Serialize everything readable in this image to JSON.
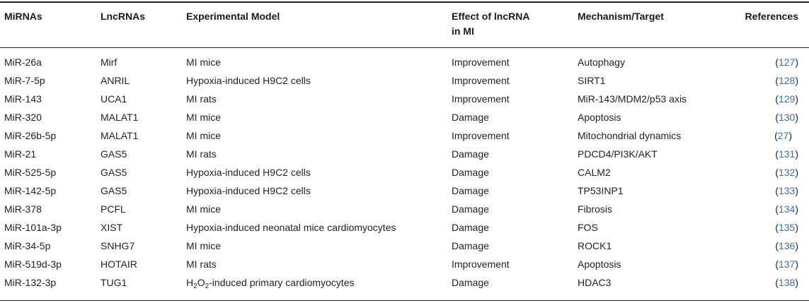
{
  "headers": {
    "mirna": "MiRNAs",
    "lncrna": "LncRNAs",
    "model": "Experimental Model",
    "effect_line1": "Effect of lncRNA",
    "effect_line2": "in MI",
    "mechanism": "Mechanism/Target",
    "references": "References"
  },
  "rows": [
    {
      "mirna": "MiR-26a",
      "lncrna": "Mirf",
      "model": "MI mice",
      "effect": "Improvement",
      "mechanism": "Autophagy",
      "ref": "127"
    },
    {
      "mirna": "MiR-7-5p",
      "lncrna": "ANRIL",
      "model": "Hypoxia-induced H9C2 cells",
      "effect": "Improvement",
      "mechanism": "SIRT1",
      "ref": "128"
    },
    {
      "mirna": "MiR-143",
      "lncrna": "UCA1",
      "model": "MI rats",
      "effect": "Improvement",
      "mechanism": "MiR-143/MDM2/p53 axis",
      "ref": "129"
    },
    {
      "mirna": "MiR-320",
      "lncrna": "MALAT1",
      "model": "MI mice",
      "effect": "Damage",
      "mechanism": "Apoptosis",
      "ref": "130"
    },
    {
      "mirna": "MiR-26b-5p",
      "lncrna": "MALAT1",
      "model": "MI mice",
      "effect": "Improvement",
      "mechanism": "Mitochondrial dynamics",
      "ref": "27"
    },
    {
      "mirna": "MiR-21",
      "lncrna": "GAS5",
      "model": "MI rats",
      "effect": "Damage",
      "mechanism": "PDCD4/PI3K/AKT",
      "ref": "131"
    },
    {
      "mirna": "MiR-525-5p",
      "lncrna": "GAS5",
      "model": "Hypoxia-induced H9C2 cells",
      "effect": "Damage",
      "mechanism": "CALM2",
      "ref": "132"
    },
    {
      "mirna": "MiR-142-5p",
      "lncrna": "GAS5",
      "model": "Hypoxia-induced H9C2 cells",
      "effect": "Damage",
      "mechanism": "TP53INP1",
      "ref": "133"
    },
    {
      "mirna": "MiR-378",
      "lncrna": "PCFL",
      "model": "MI mice",
      "effect": "Damage",
      "mechanism": "Fibrosis",
      "ref": "134"
    },
    {
      "mirna": "MiR-101a-3p",
      "lncrna": "XIST",
      "model": "Hypoxia-induced neonatal mice cardiomyocytes",
      "effect": "Damage",
      "mechanism": "FOS",
      "ref": "135"
    },
    {
      "mirna": "MiR-34-5p",
      "lncrna": "SNHG7",
      "model": "MI mice",
      "effect": "Damage",
      "mechanism": "ROCK1",
      "ref": "136"
    },
    {
      "mirna": "MiR-519d-3p",
      "lncrna": "HOTAIR",
      "model": "MI rats",
      "effect": "Improvement",
      "mechanism": "Apoptosis",
      "ref": "137"
    },
    {
      "mirna": "MiR-132-3p",
      "lncrna": "TUG1",
      "model_prefix": "H",
      "model_sub1": "2",
      "model_mid": "O",
      "model_sub2": "2",
      "model": "-induced primary cardiomyocytes",
      "effect": "Damage",
      "mechanism": "HDAC3",
      "ref": "138"
    }
  ]
}
